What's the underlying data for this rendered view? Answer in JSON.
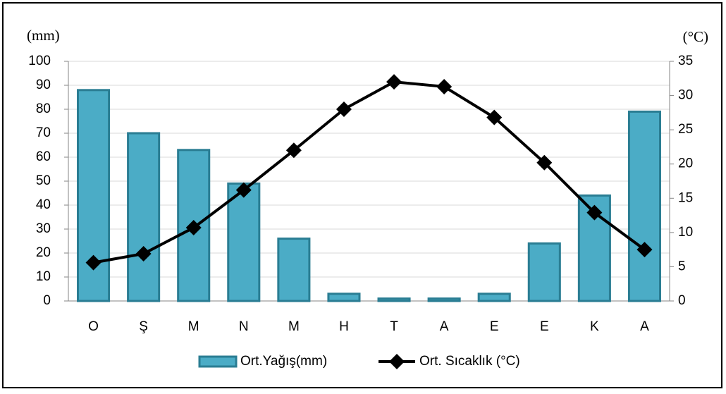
{
  "chart_data": {
    "type": "bar",
    "y_label": "(mm)",
    "y2_label": "(°C)",
    "categories": [
      "O",
      "Ş",
      "M",
      "N",
      "M",
      "H",
      "T",
      "A",
      "E",
      "E",
      "K",
      "A"
    ],
    "series": [
      {
        "name": "Ort.Yağış(mm)",
        "type": "bar",
        "color": "#4bacc6",
        "values": [
          88,
          70,
          63,
          49,
          26,
          3,
          1,
          1,
          3,
          24,
          44,
          79
        ]
      },
      {
        "name": "Ort. Sıcaklık (°C)",
        "type": "line",
        "axis": "y2",
        "color": "#000000",
        "values": [
          5.6,
          6.9,
          10.7,
          16.2,
          22,
          28,
          32,
          31.3,
          26.8,
          20.2,
          12.9,
          7.5
        ]
      }
    ],
    "ylim": [
      0,
      100
    ],
    "yticks": [
      0,
      10,
      20,
      30,
      40,
      50,
      60,
      70,
      80,
      90,
      100
    ],
    "y2lim": [
      0,
      35
    ],
    "y2ticks": [
      0,
      5,
      10,
      15,
      20,
      25,
      30,
      35
    ],
    "grid": true
  }
}
